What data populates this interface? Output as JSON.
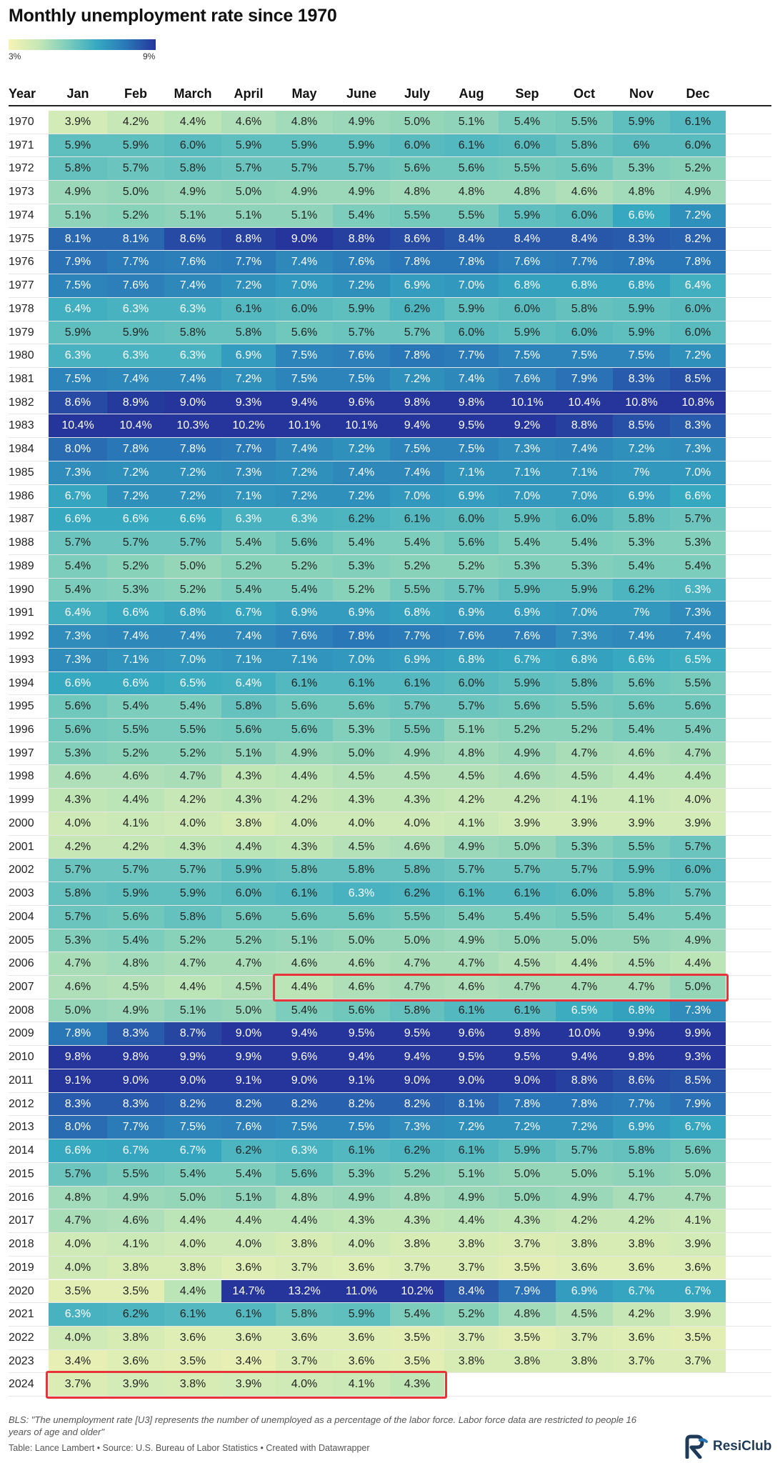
{
  "title": "Monthly unemployment rate since 1970",
  "legend": {
    "low_label": "3%",
    "high_label": "9%"
  },
  "colors": {
    "scale_low": "#f7f3b4",
    "scale_high": "#25359b",
    "highlight": "#e8333a"
  },
  "chart_data": {
    "type": "heatmap",
    "title": "Monthly unemployment rate since 1970",
    "row_header": "Year",
    "columns": [
      "Jan",
      "Feb",
      "March",
      "April",
      "May",
      "June",
      "July",
      "Aug",
      "Sep",
      "Oct",
      "Nov",
      "Dec"
    ],
    "color_scale": {
      "min": 3,
      "max": 9,
      "unit": "%"
    },
    "rows": [
      {
        "year": "1970",
        "values": [
          "3.9%",
          "4.2%",
          "4.4%",
          "4.6%",
          "4.8%",
          "4.9%",
          "5.0%",
          "5.1%",
          "5.4%",
          "5.5%",
          "5.9%",
          "6.1%"
        ]
      },
      {
        "year": "1971",
        "values": [
          "5.9%",
          "5.9%",
          "6.0%",
          "5.9%",
          "5.9%",
          "5.9%",
          "6.0%",
          "6.1%",
          "6.0%",
          "5.8%",
          "6%",
          "6.0%"
        ]
      },
      {
        "year": "1972",
        "values": [
          "5.8%",
          "5.7%",
          "5.8%",
          "5.7%",
          "5.7%",
          "5.7%",
          "5.6%",
          "5.6%",
          "5.5%",
          "5.6%",
          "5.3%",
          "5.2%"
        ]
      },
      {
        "year": "1973",
        "values": [
          "4.9%",
          "5.0%",
          "4.9%",
          "5.0%",
          "4.9%",
          "4.9%",
          "4.8%",
          "4.8%",
          "4.8%",
          "4.6%",
          "4.8%",
          "4.9%"
        ]
      },
      {
        "year": "1974",
        "values": [
          "5.1%",
          "5.2%",
          "5.1%",
          "5.1%",
          "5.1%",
          "5.4%",
          "5.5%",
          "5.5%",
          "5.9%",
          "6.0%",
          "6.6%",
          "7.2%"
        ]
      },
      {
        "year": "1975",
        "values": [
          "8.1%",
          "8.1%",
          "8.6%",
          "8.8%",
          "9.0%",
          "8.8%",
          "8.6%",
          "8.4%",
          "8.4%",
          "8.4%",
          "8.3%",
          "8.2%"
        ]
      },
      {
        "year": "1976",
        "values": [
          "7.9%",
          "7.7%",
          "7.6%",
          "7.7%",
          "7.4%",
          "7.6%",
          "7.8%",
          "7.8%",
          "7.6%",
          "7.7%",
          "7.8%",
          "7.8%"
        ]
      },
      {
        "year": "1977",
        "values": [
          "7.5%",
          "7.6%",
          "7.4%",
          "7.2%",
          "7.0%",
          "7.2%",
          "6.9%",
          "7.0%",
          "6.8%",
          "6.8%",
          "6.8%",
          "6.4%"
        ]
      },
      {
        "year": "1978",
        "values": [
          "6.4%",
          "6.3%",
          "6.3%",
          "6.1%",
          "6.0%",
          "5.9%",
          "6.2%",
          "5.9%",
          "6.0%",
          "5.8%",
          "5.9%",
          "6.0%"
        ]
      },
      {
        "year": "1979",
        "values": [
          "5.9%",
          "5.9%",
          "5.8%",
          "5.8%",
          "5.6%",
          "5.7%",
          "5.7%",
          "6.0%",
          "5.9%",
          "6.0%",
          "5.9%",
          "6.0%"
        ]
      },
      {
        "year": "1980",
        "values": [
          "6.3%",
          "6.3%",
          "6.3%",
          "6.9%",
          "7.5%",
          "7.6%",
          "7.8%",
          "7.7%",
          "7.5%",
          "7.5%",
          "7.5%",
          "7.2%"
        ]
      },
      {
        "year": "1981",
        "values": [
          "7.5%",
          "7.4%",
          "7.4%",
          "7.2%",
          "7.5%",
          "7.5%",
          "7.2%",
          "7.4%",
          "7.6%",
          "7.9%",
          "8.3%",
          "8.5%"
        ]
      },
      {
        "year": "1982",
        "values": [
          "8.6%",
          "8.9%",
          "9.0%",
          "9.3%",
          "9.4%",
          "9.6%",
          "9.8%",
          "9.8%",
          "10.1%",
          "10.4%",
          "10.8%",
          "10.8%"
        ]
      },
      {
        "year": "1983",
        "values": [
          "10.4%",
          "10.4%",
          "10.3%",
          "10.2%",
          "10.1%",
          "10.1%",
          "9.4%",
          "9.5%",
          "9.2%",
          "8.8%",
          "8.5%",
          "8.3%"
        ]
      },
      {
        "year": "1984",
        "values": [
          "8.0%",
          "7.8%",
          "7.8%",
          "7.7%",
          "7.4%",
          "7.2%",
          "7.5%",
          "7.5%",
          "7.3%",
          "7.4%",
          "7.2%",
          "7.3%"
        ]
      },
      {
        "year": "1985",
        "values": [
          "7.3%",
          "7.2%",
          "7.2%",
          "7.3%",
          "7.2%",
          "7.4%",
          "7.4%",
          "7.1%",
          "7.1%",
          "7.1%",
          "7%",
          "7.0%"
        ]
      },
      {
        "year": "1986",
        "values": [
          "6.7%",
          "7.2%",
          "7.2%",
          "7.1%",
          "7.2%",
          "7.2%",
          "7.0%",
          "6.9%",
          "7.0%",
          "7.0%",
          "6.9%",
          "6.6%"
        ]
      },
      {
        "year": "1987",
        "values": [
          "6.6%",
          "6.6%",
          "6.6%",
          "6.3%",
          "6.3%",
          "6.2%",
          "6.1%",
          "6.0%",
          "5.9%",
          "6.0%",
          "5.8%",
          "5.7%"
        ]
      },
      {
        "year": "1988",
        "values": [
          "5.7%",
          "5.7%",
          "5.7%",
          "5.4%",
          "5.6%",
          "5.4%",
          "5.4%",
          "5.6%",
          "5.4%",
          "5.4%",
          "5.3%",
          "5.3%"
        ]
      },
      {
        "year": "1989",
        "values": [
          "5.4%",
          "5.2%",
          "5.0%",
          "5.2%",
          "5.2%",
          "5.3%",
          "5.2%",
          "5.2%",
          "5.3%",
          "5.3%",
          "5.4%",
          "5.4%"
        ]
      },
      {
        "year": "1990",
        "values": [
          "5.4%",
          "5.3%",
          "5.2%",
          "5.4%",
          "5.4%",
          "5.2%",
          "5.5%",
          "5.7%",
          "5.9%",
          "5.9%",
          "6.2%",
          "6.3%"
        ]
      },
      {
        "year": "1991",
        "values": [
          "6.4%",
          "6.6%",
          "6.8%",
          "6.7%",
          "6.9%",
          "6.9%",
          "6.8%",
          "6.9%",
          "6.9%",
          "7.0%",
          "7%",
          "7.3%"
        ]
      },
      {
        "year": "1992",
        "values": [
          "7.3%",
          "7.4%",
          "7.4%",
          "7.4%",
          "7.6%",
          "7.8%",
          "7.7%",
          "7.6%",
          "7.6%",
          "7.3%",
          "7.4%",
          "7.4%"
        ]
      },
      {
        "year": "1993",
        "values": [
          "7.3%",
          "7.1%",
          "7.0%",
          "7.1%",
          "7.1%",
          "7.0%",
          "6.9%",
          "6.8%",
          "6.7%",
          "6.8%",
          "6.6%",
          "6.5%"
        ]
      },
      {
        "year": "1994",
        "values": [
          "6.6%",
          "6.6%",
          "6.5%",
          "6.4%",
          "6.1%",
          "6.1%",
          "6.1%",
          "6.0%",
          "5.9%",
          "5.8%",
          "5.6%",
          "5.5%"
        ]
      },
      {
        "year": "1995",
        "values": [
          "5.6%",
          "5.4%",
          "5.4%",
          "5.8%",
          "5.6%",
          "5.6%",
          "5.7%",
          "5.7%",
          "5.6%",
          "5.5%",
          "5.6%",
          "5.6%"
        ]
      },
      {
        "year": "1996",
        "values": [
          "5.6%",
          "5.5%",
          "5.5%",
          "5.6%",
          "5.6%",
          "5.3%",
          "5.5%",
          "5.1%",
          "5.2%",
          "5.2%",
          "5.4%",
          "5.4%"
        ]
      },
      {
        "year": "1997",
        "values": [
          "5.3%",
          "5.2%",
          "5.2%",
          "5.1%",
          "4.9%",
          "5.0%",
          "4.9%",
          "4.8%",
          "4.9%",
          "4.7%",
          "4.6%",
          "4.7%"
        ]
      },
      {
        "year": "1998",
        "values": [
          "4.6%",
          "4.6%",
          "4.7%",
          "4.3%",
          "4.4%",
          "4.5%",
          "4.5%",
          "4.5%",
          "4.6%",
          "4.5%",
          "4.4%",
          "4.4%"
        ]
      },
      {
        "year": "1999",
        "values": [
          "4.3%",
          "4.4%",
          "4.2%",
          "4.3%",
          "4.2%",
          "4.3%",
          "4.3%",
          "4.2%",
          "4.2%",
          "4.1%",
          "4.1%",
          "4.0%"
        ]
      },
      {
        "year": "2000",
        "values": [
          "4.0%",
          "4.1%",
          "4.0%",
          "3.8%",
          "4.0%",
          "4.0%",
          "4.0%",
          "4.1%",
          "3.9%",
          "3.9%",
          "3.9%",
          "3.9%"
        ]
      },
      {
        "year": "2001",
        "values": [
          "4.2%",
          "4.2%",
          "4.3%",
          "4.4%",
          "4.3%",
          "4.5%",
          "4.6%",
          "4.9%",
          "5.0%",
          "5.3%",
          "5.5%",
          "5.7%"
        ]
      },
      {
        "year": "2002",
        "values": [
          "5.7%",
          "5.7%",
          "5.7%",
          "5.9%",
          "5.8%",
          "5.8%",
          "5.8%",
          "5.7%",
          "5.7%",
          "5.7%",
          "5.9%",
          "6.0%"
        ]
      },
      {
        "year": "2003",
        "values": [
          "5.8%",
          "5.9%",
          "5.9%",
          "6.0%",
          "6.1%",
          "6.3%",
          "6.2%",
          "6.1%",
          "6.1%",
          "6.0%",
          "5.8%",
          "5.7%"
        ]
      },
      {
        "year": "2004",
        "values": [
          "5.7%",
          "5.6%",
          "5.8%",
          "5.6%",
          "5.6%",
          "5.6%",
          "5.5%",
          "5.4%",
          "5.4%",
          "5.5%",
          "5.4%",
          "5.4%"
        ]
      },
      {
        "year": "2005",
        "values": [
          "5.3%",
          "5.4%",
          "5.2%",
          "5.2%",
          "5.1%",
          "5.0%",
          "5.0%",
          "4.9%",
          "5.0%",
          "5.0%",
          "5%",
          "4.9%"
        ]
      },
      {
        "year": "2006",
        "values": [
          "4.7%",
          "4.8%",
          "4.7%",
          "4.7%",
          "4.6%",
          "4.6%",
          "4.7%",
          "4.7%",
          "4.5%",
          "4.4%",
          "4.5%",
          "4.4%"
        ]
      },
      {
        "year": "2007",
        "values": [
          "4.6%",
          "4.5%",
          "4.4%",
          "4.5%",
          "4.4%",
          "4.6%",
          "4.7%",
          "4.6%",
          "4.7%",
          "4.7%",
          "4.7%",
          "5.0%"
        ]
      },
      {
        "year": "2008",
        "values": [
          "5.0%",
          "4.9%",
          "5.1%",
          "5.0%",
          "5.4%",
          "5.6%",
          "5.8%",
          "6.1%",
          "6.1%",
          "6.5%",
          "6.8%",
          "7.3%"
        ]
      },
      {
        "year": "2009",
        "values": [
          "7.8%",
          "8.3%",
          "8.7%",
          "9.0%",
          "9.4%",
          "9.5%",
          "9.5%",
          "9.6%",
          "9.8%",
          "10.0%",
          "9.9%",
          "9.9%"
        ]
      },
      {
        "year": "2010",
        "values": [
          "9.8%",
          "9.8%",
          "9.9%",
          "9.9%",
          "9.6%",
          "9.4%",
          "9.4%",
          "9.5%",
          "9.5%",
          "9.4%",
          "9.8%",
          "9.3%"
        ]
      },
      {
        "year": "2011",
        "values": [
          "9.1%",
          "9.0%",
          "9.0%",
          "9.1%",
          "9.0%",
          "9.1%",
          "9.0%",
          "9.0%",
          "9.0%",
          "8.8%",
          "8.6%",
          "8.5%"
        ]
      },
      {
        "year": "2012",
        "values": [
          "8.3%",
          "8.3%",
          "8.2%",
          "8.2%",
          "8.2%",
          "8.2%",
          "8.2%",
          "8.1%",
          "7.8%",
          "7.8%",
          "7.7%",
          "7.9%"
        ]
      },
      {
        "year": "2013",
        "values": [
          "8.0%",
          "7.7%",
          "7.5%",
          "7.6%",
          "7.5%",
          "7.5%",
          "7.3%",
          "7.2%",
          "7.2%",
          "7.2%",
          "6.9%",
          "6.7%"
        ]
      },
      {
        "year": "2014",
        "values": [
          "6.6%",
          "6.7%",
          "6.7%",
          "6.2%",
          "6.3%",
          "6.1%",
          "6.2%",
          "6.1%",
          "5.9%",
          "5.7%",
          "5.8%",
          "5.6%"
        ]
      },
      {
        "year": "2015",
        "values": [
          "5.7%",
          "5.5%",
          "5.4%",
          "5.4%",
          "5.6%",
          "5.3%",
          "5.2%",
          "5.1%",
          "5.0%",
          "5.0%",
          "5.1%",
          "5.0%"
        ]
      },
      {
        "year": "2016",
        "values": [
          "4.8%",
          "4.9%",
          "5.0%",
          "5.1%",
          "4.8%",
          "4.9%",
          "4.8%",
          "4.9%",
          "5.0%",
          "4.9%",
          "4.7%",
          "4.7%"
        ]
      },
      {
        "year": "2017",
        "values": [
          "4.7%",
          "4.6%",
          "4.4%",
          "4.4%",
          "4.4%",
          "4.3%",
          "4.3%",
          "4.4%",
          "4.3%",
          "4.2%",
          "4.2%",
          "4.1%"
        ]
      },
      {
        "year": "2018",
        "values": [
          "4.0%",
          "4.1%",
          "4.0%",
          "4.0%",
          "3.8%",
          "4.0%",
          "3.8%",
          "3.8%",
          "3.7%",
          "3.8%",
          "3.8%",
          "3.9%"
        ]
      },
      {
        "year": "2019",
        "values": [
          "4.0%",
          "3.8%",
          "3.8%",
          "3.6%",
          "3.7%",
          "3.6%",
          "3.7%",
          "3.7%",
          "3.5%",
          "3.6%",
          "3.6%",
          "3.6%"
        ]
      },
      {
        "year": "2020",
        "values": [
          "3.5%",
          "3.5%",
          "4.4%",
          "14.7%",
          "13.2%",
          "11.0%",
          "10.2%",
          "8.4%",
          "7.9%",
          "6.9%",
          "6.7%",
          "6.7%"
        ]
      },
      {
        "year": "2021",
        "values": [
          "6.3%",
          "6.2%",
          "6.1%",
          "6.1%",
          "5.8%",
          "5.9%",
          "5.4%",
          "5.2%",
          "4.8%",
          "4.5%",
          "4.2%",
          "3.9%"
        ]
      },
      {
        "year": "2022",
        "values": [
          "4.0%",
          "3.8%",
          "3.6%",
          "3.6%",
          "3.6%",
          "3.6%",
          "3.5%",
          "3.7%",
          "3.5%",
          "3.7%",
          "3.6%",
          "3.5%"
        ]
      },
      {
        "year": "2023",
        "values": [
          "3.4%",
          "3.6%",
          "3.5%",
          "3.4%",
          "3.7%",
          "3.6%",
          "3.5%",
          "3.8%",
          "3.8%",
          "3.8%",
          "3.7%",
          "3.7%"
        ]
      },
      {
        "year": "2024",
        "values": [
          "3.7%",
          "3.9%",
          "3.8%",
          "3.9%",
          "4.0%",
          "4.1%",
          "4.3%",
          "",
          "",
          "",
          "",
          ""
        ]
      }
    ],
    "highlights": [
      {
        "year": "2007",
        "from": "May",
        "to": "Dec"
      },
      {
        "year": "2024",
        "from": "Jan",
        "to": "July"
      }
    ]
  },
  "footnote": "BLS: \"The unemployment rate [U3] represents the number of unemployed as a percentage of the labor force. Labor force data are restricted to people 16 years of age and older\"",
  "source": "Table: Lance Lambert • Source: U.S. Bureau of Labor Statistics • Created with Datawrapper",
  "brand": {
    "name": "ResiClub",
    "logo_icon": "resiclub-logo-icon"
  }
}
